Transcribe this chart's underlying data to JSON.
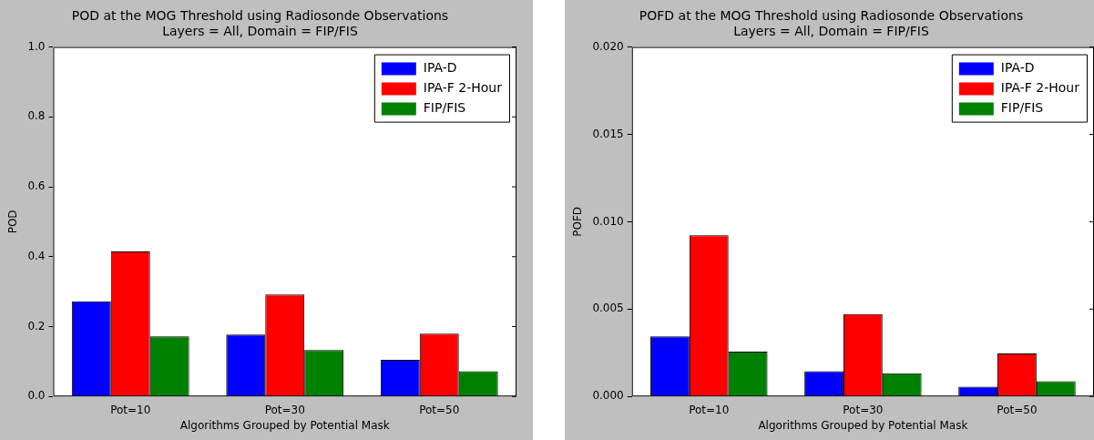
{
  "chart_data": [
    {
      "type": "bar",
      "title": "POD at the MOG Threshold using Radiosonde Observations",
      "subtitle": "Layers = All, Domain = FIP/FIS",
      "xlabel": "Algorithms Grouped by Potential Mask",
      "ylabel": "POD",
      "categories": [
        "Pot=10",
        "Pot=30",
        "Pot=50"
      ],
      "series": [
        {
          "name": "IPA-D",
          "color": "#0000ff",
          "values": [
            0.272,
            0.177,
            0.105
          ]
        },
        {
          "name": "IPA-F 2-Hour",
          "color": "#ff0000",
          "values": [
            0.415,
            0.292,
            0.18
          ]
        },
        {
          "name": "FIP/FIS",
          "color": "#008000",
          "values": [
            0.172,
            0.133,
            0.072
          ]
        }
      ],
      "ylim": [
        0,
        1
      ],
      "yticks": [
        {
          "value": 0,
          "label": "0.0"
        },
        0.2,
        0.4,
        0.6,
        0.8,
        {
          "value": 1,
          "label": "1.0"
        }
      ],
      "grid": false,
      "legend": "top right"
    },
    {
      "type": "bar",
      "title": "POFD at the MOG Threshold using Radiosonde Observations",
      "subtitle": "Layers = All, Domain = FIP/FIS",
      "xlabel": "Algorithms Grouped by Potential Mask",
      "ylabel": "POFD",
      "categories": [
        "Pot=10",
        "Pot=30",
        "Pot=50"
      ],
      "series": [
        {
          "name": "IPA-D",
          "color": "#0000ff",
          "values": [
            0.00344,
            0.00144,
            0.00056
          ]
        },
        {
          "name": "IPA-F 2-Hour",
          "color": "#ff0000",
          "values": [
            0.00923,
            0.00472,
            0.00246
          ]
        },
        {
          "name": "FIP/FIS",
          "color": "#008000",
          "values": [
            0.00256,
            0.00133,
            0.00087
          ]
        }
      ],
      "ylim": [
        0,
        0.02
      ],
      "yticks": [
        {
          "value": 0,
          "label": "0.000"
        },
        {
          "value": 0.005,
          "label": "0.005"
        },
        {
          "value": 0.01,
          "label": "0.010"
        },
        {
          "value": 0.015,
          "label": "0.015"
        },
        {
          "value": 0.02,
          "label": "0.020"
        }
      ],
      "grid": false,
      "legend": "top right"
    }
  ]
}
